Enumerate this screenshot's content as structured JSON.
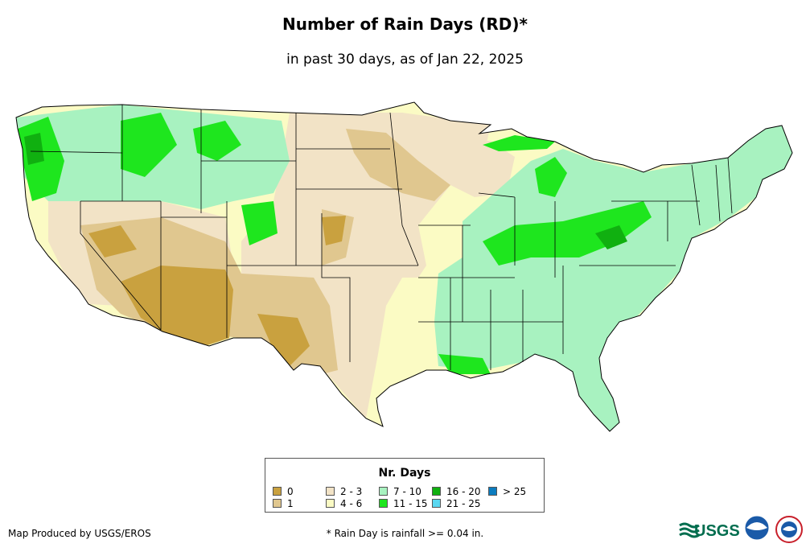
{
  "map": {
    "title": "Number of Rain Days (RD)*",
    "subtitle": "in past 30 days, as of Jan 22, 2025"
  },
  "legend": {
    "title": "Nr. Days",
    "items": [
      {
        "label": "0",
        "color": "#c9a13f"
      },
      {
        "label": "1",
        "color": "#e0c78f"
      },
      {
        "label": "2 - 3",
        "color": "#f2e3c6"
      },
      {
        "label": "4 - 6",
        "color": "#fbfbc4"
      },
      {
        "label": "7 - 10",
        "color": "#a8f2c0"
      },
      {
        "label": "11 - 15",
        "color": "#1ee61e"
      },
      {
        "label": "16 - 20",
        "color": "#10b010"
      },
      {
        "label": "21 - 25",
        "color": "#5ad7f0"
      },
      {
        "label": "> 25",
        "color": "#0b7cbf"
      }
    ]
  },
  "footer": {
    "credit": "Map Produced by USGS/EROS",
    "footnote": "* Rain Day is rainfall >= 0.04 in.",
    "logos": [
      "USGS",
      "NOAA",
      "National Weather Service"
    ]
  }
}
